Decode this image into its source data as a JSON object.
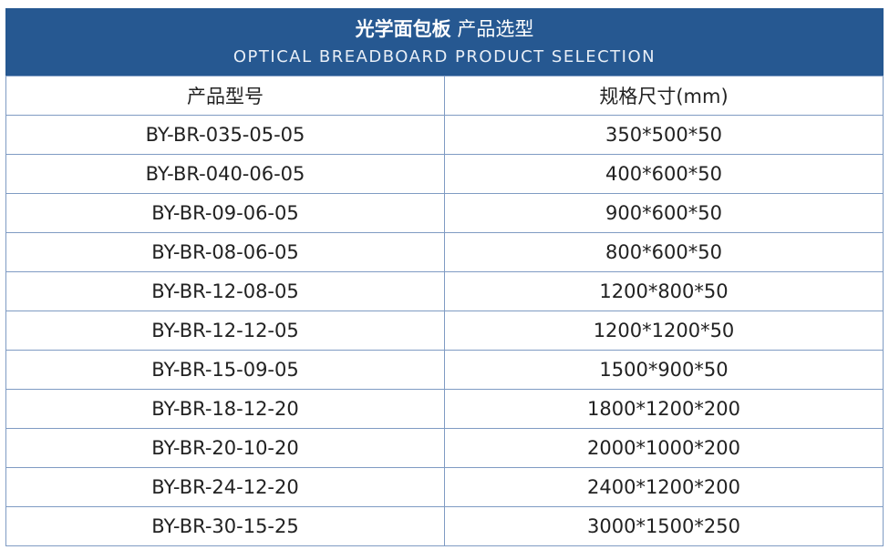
{
  "banner": {
    "title_bold": "光学面包板",
    "title_rest": "产品选型",
    "subtitle": "OPTICAL BREADBOARD PRODUCT SELECTION",
    "color": "#265891"
  },
  "table": {
    "headers": [
      "产品型号",
      "规格尺寸(mm)"
    ],
    "rows": [
      [
        "BY-BR-035-05-05",
        "350*500*50"
      ],
      [
        "BY-BR-040-06-05",
        "400*600*50"
      ],
      [
        "BY-BR-09-06-05",
        "900*600*50"
      ],
      [
        "BY-BR-08-06-05",
        "800*600*50"
      ],
      [
        "BY-BR-12-08-05",
        "1200*800*50"
      ],
      [
        "BY-BR-12-12-05",
        "1200*1200*50"
      ],
      [
        "BY-BR-15-09-05",
        "1500*900*50"
      ],
      [
        "BY-BR-18-12-20",
        "1800*1200*200"
      ],
      [
        "BY-BR-20-10-20",
        "2000*1000*200"
      ],
      [
        "BY-BR-24-12-20",
        "2400*1200*200"
      ],
      [
        "BY-BR-30-15-25",
        "3000*1500*250"
      ]
    ]
  }
}
